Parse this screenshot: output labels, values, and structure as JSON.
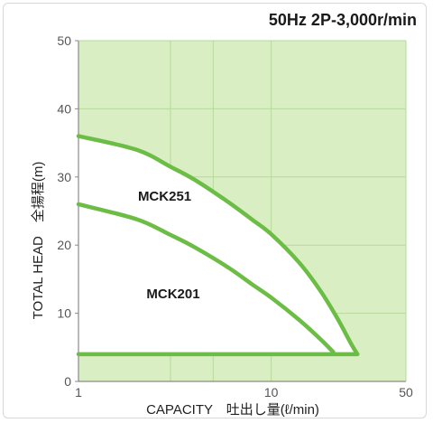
{
  "chart_data": {
    "type": "line",
    "title": "50Hz 2P-3,000r/min",
    "xlabel": "CAPACITY　吐出し量(ℓ/min)",
    "ylabel": "TOTAL HEAD　全揚程(m)",
    "x_scale": "log",
    "xlim": [
      1,
      50
    ],
    "ylim": [
      0,
      50
    ],
    "x_ticks": [
      "1",
      "10",
      "50"
    ],
    "y_ticks": [
      "0",
      "10",
      "20",
      "30",
      "40",
      "50"
    ],
    "x_grid_values": [
      3,
      5,
      10
    ],
    "grid": true,
    "series": [
      {
        "name": "MCK251",
        "points": [
          [
            1,
            36
          ],
          [
            2,
            34
          ],
          [
            3,
            31.5
          ],
          [
            4,
            29.6
          ],
          [
            6,
            26.3
          ],
          [
            8,
            23.7
          ],
          [
            10,
            21.6
          ],
          [
            14,
            17.4
          ],
          [
            18,
            13.3
          ],
          [
            22,
            9.3
          ],
          [
            26,
            5.5
          ],
          [
            28,
            4.0
          ]
        ]
      },
      {
        "name": "MCK201",
        "points": [
          [
            1,
            26
          ],
          [
            2,
            23.8
          ],
          [
            3,
            21.5
          ],
          [
            4,
            19.7
          ],
          [
            6,
            16.7
          ],
          [
            8,
            14.2
          ],
          [
            10,
            12.3
          ],
          [
            14,
            9.0
          ],
          [
            18,
            6.2
          ],
          [
            21,
            4.3
          ]
        ]
      }
    ],
    "base_line": [
      [
        1,
        4
      ],
      [
        28,
        4
      ]
    ],
    "colors": {
      "plot_background": "#d9efc3",
      "curve": "#6cbd45",
      "grid": "#b7d89a",
      "axis": "#8a8a8a"
    }
  }
}
